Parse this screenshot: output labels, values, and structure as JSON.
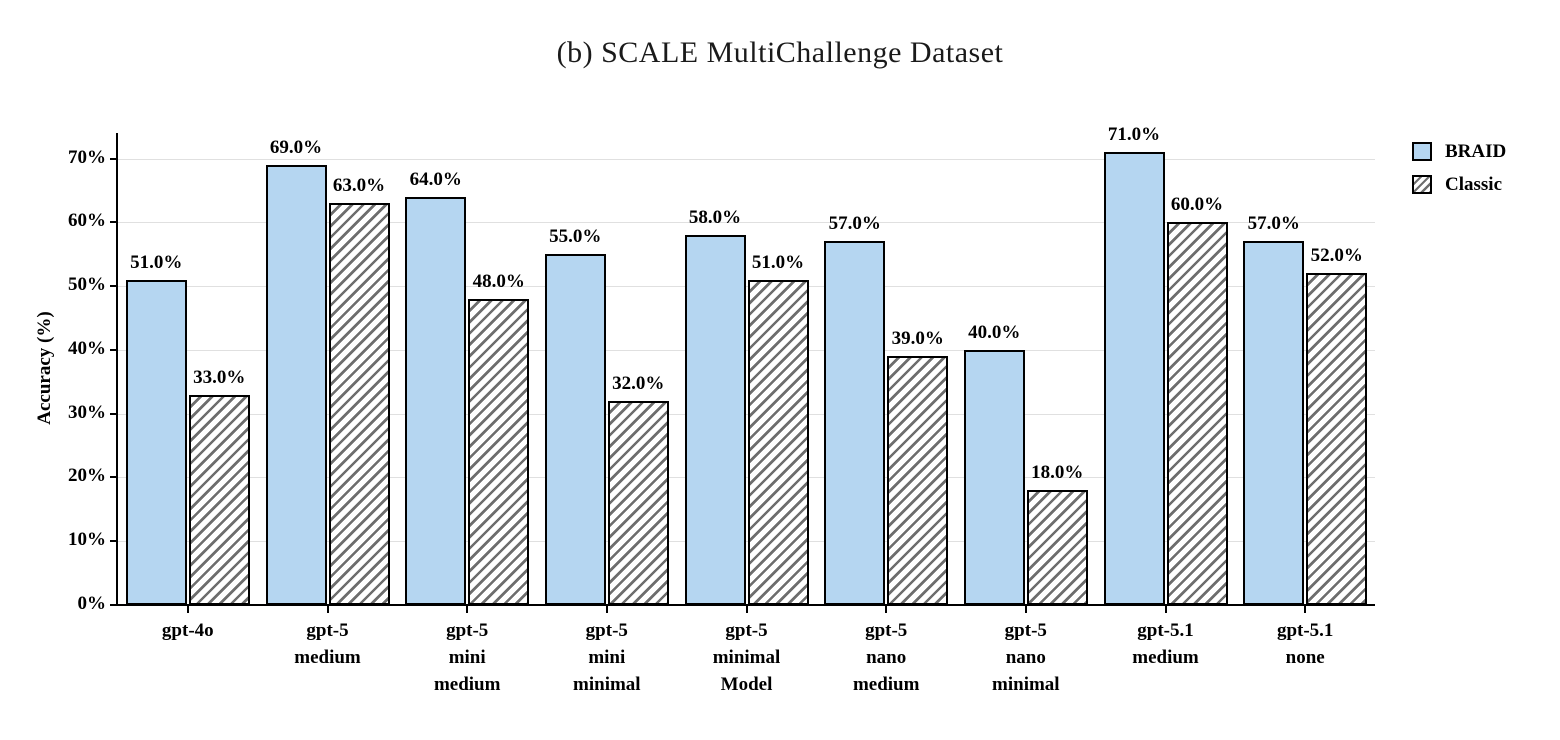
{
  "title": "(b) SCALE MultiChallenge Dataset",
  "chart_data": {
    "type": "bar",
    "categories": [
      "gpt-4o",
      "gpt-5\nmedium",
      "gpt-5\nmini\nmedium",
      "gpt-5\nmini\nminimal",
      "gpt-5\nminimal\nModel",
      "gpt-5\nnano\nmedium",
      "gpt-5\nnano\nminimal",
      "gpt-5.1\nmedium",
      "gpt-5.1\nnone"
    ],
    "series": [
      {
        "name": "BRAID",
        "values": [
          51,
          69,
          64,
          55,
          58,
          57,
          40,
          71,
          57
        ],
        "bar_labels": [
          "51.0%",
          "69.0%",
          "64.0%",
          "55.0%",
          "58.0%",
          "57.0%",
          "40.0%",
          "71.0%",
          "57.0%"
        ],
        "style": "solid",
        "fill": "#b5d6f1"
      },
      {
        "name": "Classic",
        "values": [
          33,
          63,
          48,
          32,
          51,
          39,
          18,
          60,
          52
        ],
        "bar_labels": [
          "33.0%",
          "63.0%",
          "48.0%",
          "32.0%",
          "51.0%",
          "39.0%",
          "18.0%",
          "60.0%",
          "52.0%"
        ],
        "style": "hatched",
        "hatch_color": "#6e6e6e"
      }
    ],
    "ylabel": "Accuracy (%)",
    "ylim": [
      0,
      74
    ],
    "yticks": [
      0,
      10,
      20,
      30,
      40,
      50,
      60,
      70
    ],
    "ytick_labels": [
      "0%",
      "10%",
      "20%",
      "30%",
      "40%",
      "50%",
      "60%",
      "70%"
    ],
    "grid": "horizontal",
    "legend_position": "top-right",
    "colors": {
      "braid_fill": "#b5d6f1",
      "hatch": "#6e6e6e",
      "bar_edge": "#000000",
      "gridline": "#e0e0e0",
      "axis": "#000000"
    }
  }
}
